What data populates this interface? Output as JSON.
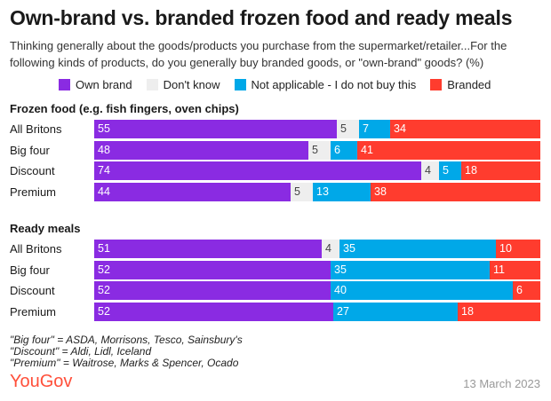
{
  "header": {
    "title": "Own-brand vs. branded frozen food and ready meals",
    "subtitle": "Thinking generally about the goods/products you purchase from the supermarket/retailer...For the following kinds of products, do you generally buy branded goods, or \"own-brand\" goods? (%)"
  },
  "colors": {
    "own_brand": "#8a2be2",
    "dont_know": "#eeeeee",
    "not_applicable": "#00a8e8",
    "branded": "#ff3c2e"
  },
  "chart_data": {
    "type": "bar",
    "orientation": "horizontal",
    "stacked": true,
    "legend": [
      "Own brand",
      "Don't know",
      "Not applicable - I do not buy this",
      "Branded"
    ],
    "groups": [
      {
        "title": "Frozen food (e.g. fish fingers, oven chips)",
        "categories": [
          "All Britons",
          "Big four",
          "Discount",
          "Premium"
        ],
        "series": [
          {
            "name": "Own brand",
            "values": [
              55,
              48,
              74,
              44
            ]
          },
          {
            "name": "Don't know",
            "values": [
              5,
              5,
              4,
              5
            ]
          },
          {
            "name": "Not applicable - I do not buy this",
            "values": [
              7,
              6,
              5,
              13
            ]
          },
          {
            "name": "Branded",
            "values": [
              34,
              41,
              18,
              38
            ]
          }
        ]
      },
      {
        "title": "Ready meals",
        "categories": [
          "All Britons",
          "Big four",
          "Discount",
          "Premium"
        ],
        "series": [
          {
            "name": "Own brand",
            "values": [
              51,
              52,
              52,
              52
            ]
          },
          {
            "name": "Don't know",
            "values": [
              4,
              null,
              null,
              null
            ]
          },
          {
            "name": "Not applicable - I do not buy this",
            "values": [
              35,
              35,
              40,
              27
            ]
          },
          {
            "name": "Branded",
            "values": [
              10,
              11,
              6,
              18
            ]
          }
        ]
      }
    ]
  },
  "footer": {
    "notes": [
      "\"Big four\" = ASDA, Morrisons, Tesco, Sainsbury's",
      "\"Discount\" = Aldi, Lidl, Iceland",
      "\"Premium\" = Waitrose, Marks & Spencer, Ocado"
    ],
    "logo": "YouGov",
    "date": "13 March 2023"
  }
}
